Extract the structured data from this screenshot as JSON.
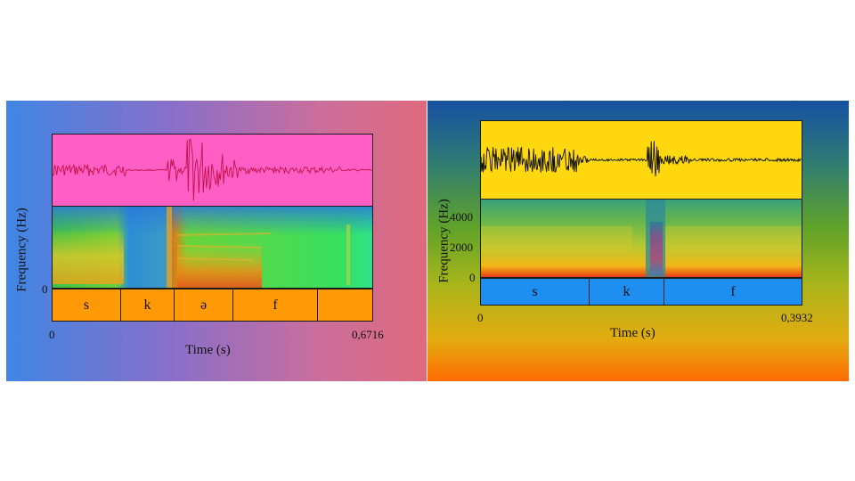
{
  "left": {
    "ylabel": "Frequency (Hz)",
    "freq_ticks": [
      "0"
    ],
    "time_start": "0",
    "time_end": "0,6716",
    "xlabel": "Time (s)",
    "segments": [
      "s",
      "k",
      "ə",
      "f",
      ""
    ],
    "colors": {
      "waveform_bg": "#ff5fc4",
      "waveform": "#c2134f",
      "tier_bg": "#ff9a06"
    }
  },
  "right": {
    "ylabel": "Frequency (Hz)",
    "freq_ticks": [
      "4000",
      "2000",
      "0"
    ],
    "time_start": "0",
    "time_end": "0,3932",
    "xlabel": "Time (s)",
    "segments": [
      "s",
      "k",
      "f"
    ],
    "colors": {
      "waveform_bg": "#ffd80f",
      "waveform": "#111111",
      "tier_bg": "#1e8ef0"
    }
  }
}
